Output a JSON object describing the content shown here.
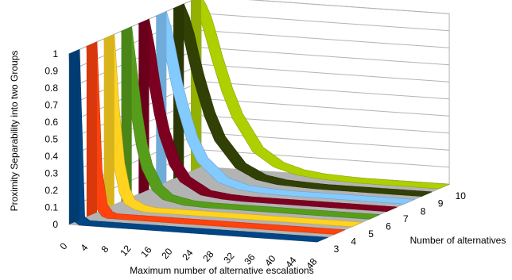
{
  "chart_data": {
    "type": "line",
    "style": "3d-ribbon",
    "ylabel": "Proximity Separability into two Groups",
    "xlabel": "Maximum number of alternative escalations",
    "zlabel": "Number of alternatives",
    "y_ticks": [
      "0",
      "0.1",
      "0.2",
      "0.3",
      "0.4",
      "0.5",
      "0.6",
      "0.7",
      "0.8",
      "0.9",
      "1"
    ],
    "x_ticks": [
      "0",
      "4",
      "8",
      "12",
      "16",
      "20",
      "24",
      "28",
      "32",
      "36",
      "40",
      "44",
      "48"
    ],
    "z_ticks": [
      "3",
      "4",
      "5",
      "6",
      "7",
      "8",
      "9",
      "10"
    ],
    "ylim": [
      0,
      1
    ],
    "xlim": [
      0,
      48
    ],
    "grid": true,
    "legend": "none",
    "series": [
      {
        "alternatives": 3,
        "color": "#004586",
        "points": [
          [
            0,
            1
          ],
          [
            1,
            0.02
          ],
          [
            2,
            0
          ],
          [
            48,
            0
          ]
        ]
      },
      {
        "alternatives": 4,
        "color": "#ff420e",
        "points": [
          [
            0,
            1
          ],
          [
            1,
            0.25
          ],
          [
            2,
            0.05
          ],
          [
            3,
            0.01
          ],
          [
            4,
            0
          ],
          [
            48,
            0
          ]
        ]
      },
      {
        "alternatives": 5,
        "color": "#ffd320",
        "points": [
          [
            0,
            1
          ],
          [
            1,
            0.55
          ],
          [
            2,
            0.25
          ],
          [
            3,
            0.1
          ],
          [
            4,
            0.04
          ],
          [
            6,
            0.01
          ],
          [
            8,
            0
          ],
          [
            48,
            0
          ]
        ]
      },
      {
        "alternatives": 6,
        "color": "#579d1c",
        "points": [
          [
            0,
            1
          ],
          [
            1,
            0.75
          ],
          [
            2,
            0.5
          ],
          [
            3,
            0.32
          ],
          [
            4,
            0.2
          ],
          [
            6,
            0.08
          ],
          [
            8,
            0.03
          ],
          [
            12,
            0.005
          ],
          [
            16,
            0
          ],
          [
            48,
            0
          ]
        ]
      },
      {
        "alternatives": 7,
        "color": "#7e0021",
        "points": [
          [
            0,
            1
          ],
          [
            1,
            0.85
          ],
          [
            2,
            0.65
          ],
          [
            3,
            0.48
          ],
          [
            4,
            0.35
          ],
          [
            6,
            0.18
          ],
          [
            8,
            0.09
          ],
          [
            12,
            0.02
          ],
          [
            16,
            0.005
          ],
          [
            20,
            0
          ],
          [
            48,
            0
          ]
        ]
      },
      {
        "alternatives": 8,
        "color": "#83caff",
        "points": [
          [
            0,
            1
          ],
          [
            1,
            0.9
          ],
          [
            2,
            0.75
          ],
          [
            3,
            0.6
          ],
          [
            4,
            0.48
          ],
          [
            6,
            0.28
          ],
          [
            8,
            0.16
          ],
          [
            12,
            0.05
          ],
          [
            16,
            0.015
          ],
          [
            20,
            0.005
          ],
          [
            24,
            0
          ],
          [
            48,
            0
          ]
        ]
      },
      {
        "alternatives": 9,
        "color": "#314004",
        "points": [
          [
            0,
            1
          ],
          [
            1,
            0.93
          ],
          [
            2,
            0.83
          ],
          [
            3,
            0.7
          ],
          [
            4,
            0.58
          ],
          [
            6,
            0.38
          ],
          [
            8,
            0.24
          ],
          [
            12,
            0.09
          ],
          [
            16,
            0.03
          ],
          [
            20,
            0.01
          ],
          [
            24,
            0.004
          ],
          [
            28,
            0
          ],
          [
            48,
            0
          ]
        ]
      },
      {
        "alternatives": 10,
        "color": "#aecf00",
        "points": [
          [
            0,
            1
          ],
          [
            1,
            0.95
          ],
          [
            2,
            0.88
          ],
          [
            3,
            0.78
          ],
          [
            4,
            0.67
          ],
          [
            6,
            0.48
          ],
          [
            8,
            0.33
          ],
          [
            12,
            0.14
          ],
          [
            16,
            0.06
          ],
          [
            20,
            0.025
          ],
          [
            24,
            0.01
          ],
          [
            28,
            0.004
          ],
          [
            32,
            0
          ],
          [
            48,
            0
          ]
        ]
      }
    ]
  }
}
